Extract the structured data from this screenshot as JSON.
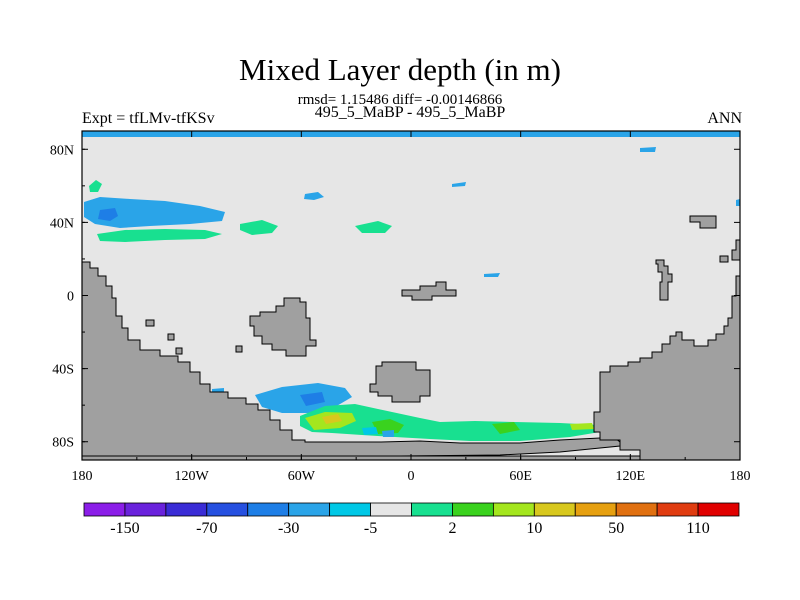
{
  "title": "Mixed Layer depth (in m)",
  "stats": "rmsd= 1.15486 diff= -0.00146866",
  "experiment": "Expt = tfLMv-tfKSv",
  "cases": "495_5_MaBP - 495_5_MaBP",
  "season": "ANN",
  "map": {
    "lon_range": [
      -180,
      180
    ],
    "lat_range": [
      -90,
      90
    ],
    "land_color": "#a0a0a0",
    "ocean_color": "#e6e6e6",
    "x_ticks": [
      "180",
      "120W",
      "60W",
      "0",
      "60E",
      "120E",
      "180"
    ],
    "y_ticks": [
      "80N",
      "40N",
      "0",
      "40S",
      "80S"
    ]
  },
  "colorbar": {
    "colors": [
      "#8b1ee8",
      "#6a22dc",
      "#3a2cd6",
      "#2650e0",
      "#1e7ee6",
      "#2aa4e8",
      "#00c8e6",
      "#e6e6e6",
      "#18e090",
      "#3ad21e",
      "#a4e61e",
      "#d8c81e",
      "#e6a010",
      "#e07010",
      "#e03c10",
      "#e00000"
    ],
    "labels": [
      "-150",
      "-70",
      "-30",
      "-5",
      "2",
      "10",
      "50",
      "110"
    ]
  }
}
